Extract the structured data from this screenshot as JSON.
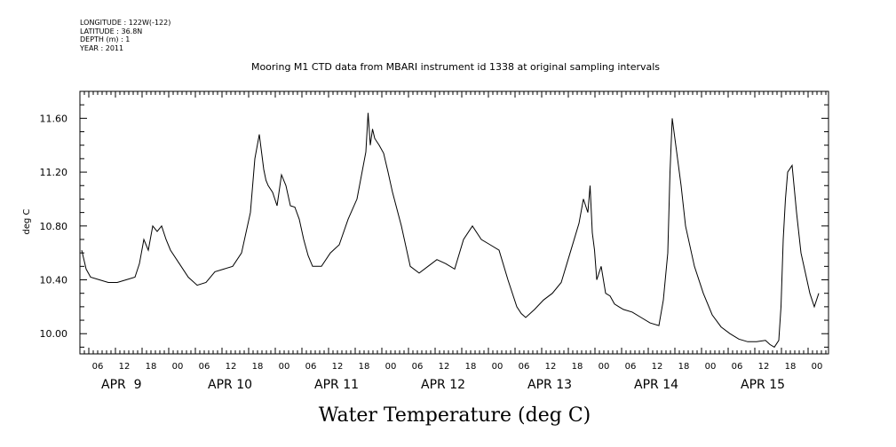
{
  "header": {
    "longitude": "LONGITUDE : 122W(-122)",
    "latitude": "LATITUDE : 36.8N",
    "depth": "DEPTH (m) : 1",
    "year": "YEAR : 2011"
  },
  "chart_data": {
    "type": "line",
    "title": "Mooring M1 CTD data from MBARI instrument id 1338 at original sampling intervals",
    "xlabel": "Water Temperature (deg C)",
    "ylabel": "deg C",
    "ylim": [
      9.85,
      11.8
    ],
    "xlim_hours": [
      0,
      166
    ],
    "y_ticks": [
      10.0,
      10.4,
      10.8,
      11.2,
      11.6
    ],
    "y_tick_labels": [
      "10.00",
      "10.40",
      "10.80",
      "11.20",
      "11.60"
    ],
    "x_hour_labels": [
      "06",
      "12",
      "18",
      "00",
      "06",
      "12",
      "18",
      "00",
      "06",
      "12",
      "18",
      "00",
      "06",
      "12",
      "18",
      "00",
      "06",
      "12",
      "18",
      "00",
      "06",
      "12",
      "18",
      "00",
      "06",
      "12",
      "18",
      "00"
    ],
    "x_hour_positions": [
      4,
      10,
      16,
      22,
      28,
      34,
      40,
      46,
      52,
      58,
      64,
      70,
      76,
      82,
      88,
      94,
      100,
      106,
      112,
      118,
      124,
      130,
      136,
      142,
      148,
      154,
      160,
      166
    ],
    "date_labels": [
      "APR  9",
      "APR 10",
      "APR 11",
      "APR 12",
      "APR 13",
      "APR 14",
      "APR 15"
    ],
    "date_positions": [
      4,
      28,
      52,
      76,
      100,
      124,
      148
    ],
    "grid": false,
    "series": [
      {
        "x_hours_from_first_tick_minus_4": [
          0,
          1,
          2,
          4,
          6,
          8,
          10,
          12,
          13,
          14,
          15,
          16,
          17,
          18,
          19,
          20,
          22,
          24,
          26,
          28,
          30,
          32,
          34,
          36,
          38,
          39,
          40,
          41,
          41.5,
          42,
          43,
          44,
          45,
          46,
          47,
          48,
          49,
          50,
          51,
          52,
          54,
          56,
          58,
          60,
          62,
          64,
          64.5,
          65,
          65.5,
          66,
          67,
          68,
          69,
          70,
          72,
          74,
          76,
          78,
          80,
          82,
          84,
          86,
          88,
          90,
          92,
          94,
          96,
          98,
          99,
          100,
          102,
          104,
          106,
          108,
          110,
          112,
          113,
          114,
          114.5,
          115,
          115.5,
          116,
          117,
          118,
          119,
          120,
          121,
          122,
          124,
          126,
          128,
          130,
          131,
          132,
          132.5,
          133,
          134,
          135,
          136,
          138,
          140,
          142,
          144,
          146,
          148,
          150,
          152,
          154,
          155,
          156,
          157,
          157.5,
          158,
          158.5,
          159,
          160,
          161,
          162,
          163,
          164,
          165,
          166
        ],
        "values": [
          10.62,
          10.48,
          10.42,
          10.4,
          10.38,
          10.38,
          10.4,
          10.42,
          10.52,
          10.7,
          10.62,
          10.8,
          10.76,
          10.8,
          10.7,
          10.62,
          10.52,
          10.42,
          10.36,
          10.38,
          10.46,
          10.48,
          10.5,
          10.6,
          10.9,
          11.3,
          11.48,
          11.22,
          11.14,
          11.1,
          11.05,
          10.95,
          11.18,
          11.1,
          10.95,
          10.94,
          10.85,
          10.7,
          10.58,
          10.5,
          10.5,
          10.6,
          10.66,
          10.85,
          11.0,
          11.35,
          11.64,
          11.4,
          11.52,
          11.45,
          11.4,
          11.34,
          11.2,
          11.05,
          10.8,
          10.5,
          10.45,
          10.5,
          10.55,
          10.52,
          10.48,
          10.7,
          10.8,
          10.7,
          10.66,
          10.62,
          10.4,
          10.2,
          10.15,
          10.12,
          10.18,
          10.25,
          10.3,
          10.38,
          10.6,
          10.82,
          11.0,
          10.9,
          11.1,
          10.75,
          10.62,
          10.4,
          10.5,
          10.3,
          10.28,
          10.22,
          10.2,
          10.18,
          10.16,
          10.12,
          10.08,
          10.06,
          10.25,
          10.6,
          11.2,
          11.6,
          11.35,
          11.1,
          10.8,
          10.5,
          10.3,
          10.14,
          10.05,
          10.0,
          9.96,
          9.94,
          9.94,
          9.95,
          9.92,
          9.9,
          9.95,
          10.2,
          10.7,
          11.0,
          11.2,
          11.25,
          10.9,
          10.6,
          10.45,
          10.3,
          10.2,
          10.3,
          10.25
        ]
      }
    ]
  }
}
